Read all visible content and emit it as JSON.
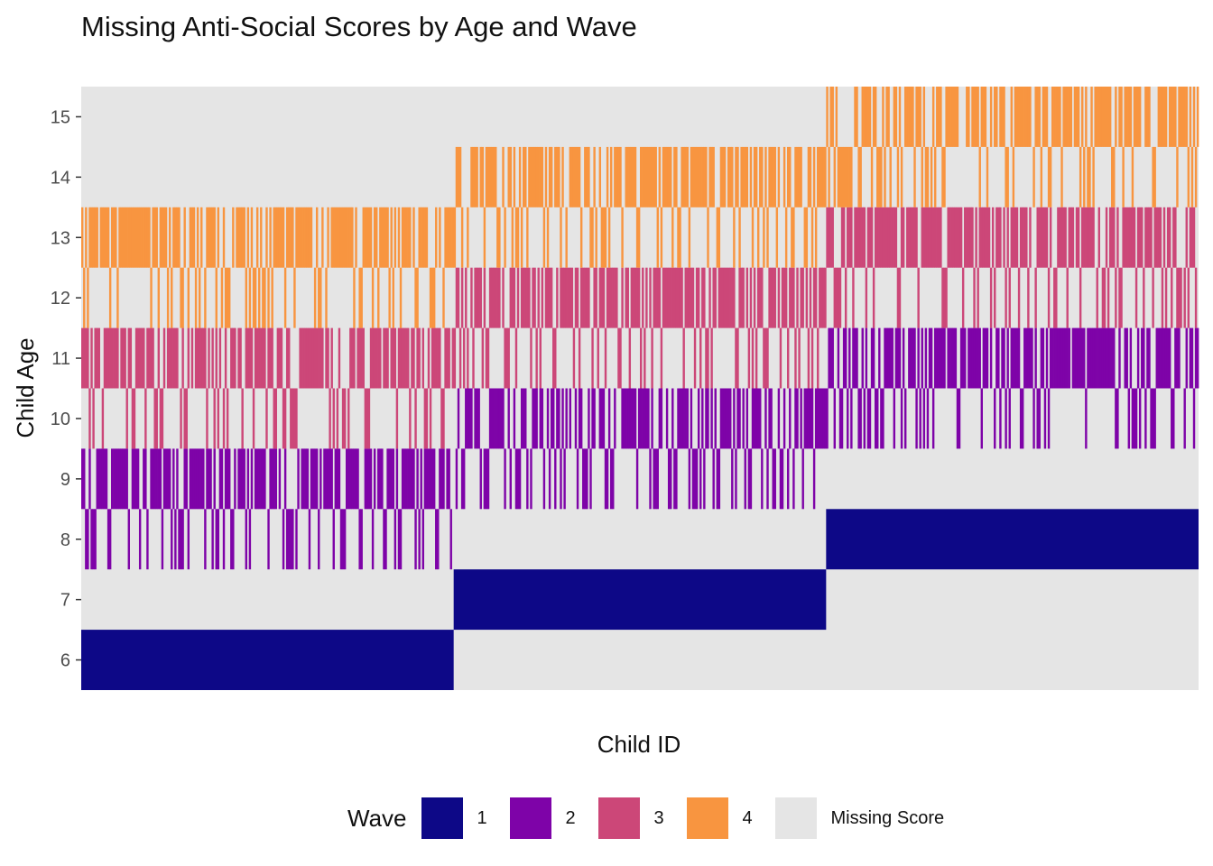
{
  "chart_data": {
    "type": "heatmap",
    "title": "Missing Anti-Social Scores by Age and Wave",
    "xlabel": "Child ID",
    "ylabel": "Child Age",
    "y_ticks": [
      "6",
      "7",
      "8",
      "9",
      "10",
      "11",
      "12",
      "13",
      "14",
      "15"
    ],
    "ylim": [
      5.5,
      15.5
    ],
    "legend": {
      "title": "Wave",
      "position": "bottom",
      "items": [
        {
          "label": "1",
          "color": "#0d0887"
        },
        {
          "label": "2",
          "color": "#7e03a8"
        },
        {
          "label": "3",
          "color": "#cc4778"
        },
        {
          "label": "4",
          "color": "#f89540"
        },
        {
          "label": "Missing Score",
          "color": "#e5e5e5"
        }
      ]
    },
    "background_color": "#e5e5e5",
    "cohorts": [
      {
        "start_age": 6,
        "waves": [
          {
            "wave": 1,
            "age": 6
          },
          {
            "wave": 2,
            "ages": [
              8,
              9
            ]
          },
          {
            "wave": 3,
            "ages": [
              10,
              11
            ]
          },
          {
            "wave": 4,
            "ages": [
              12,
              13
            ]
          }
        ]
      },
      {
        "start_age": 7,
        "waves": [
          {
            "wave": 1,
            "age": 7
          },
          {
            "wave": 2,
            "ages": [
              9,
              10
            ]
          },
          {
            "wave": 3,
            "ages": [
              11,
              12
            ]
          },
          {
            "wave": 4,
            "ages": [
              13,
              14
            ]
          }
        ]
      },
      {
        "start_age": 8,
        "waves": [
          {
            "wave": 1,
            "age": 8
          },
          {
            "wave": 2,
            "ages": [
              10,
              11
            ]
          },
          {
            "wave": 3,
            "ages": [
              12,
              13
            ]
          },
          {
            "wave": 4,
            "ages": [
              14,
              15
            ]
          }
        ]
      }
    ]
  }
}
